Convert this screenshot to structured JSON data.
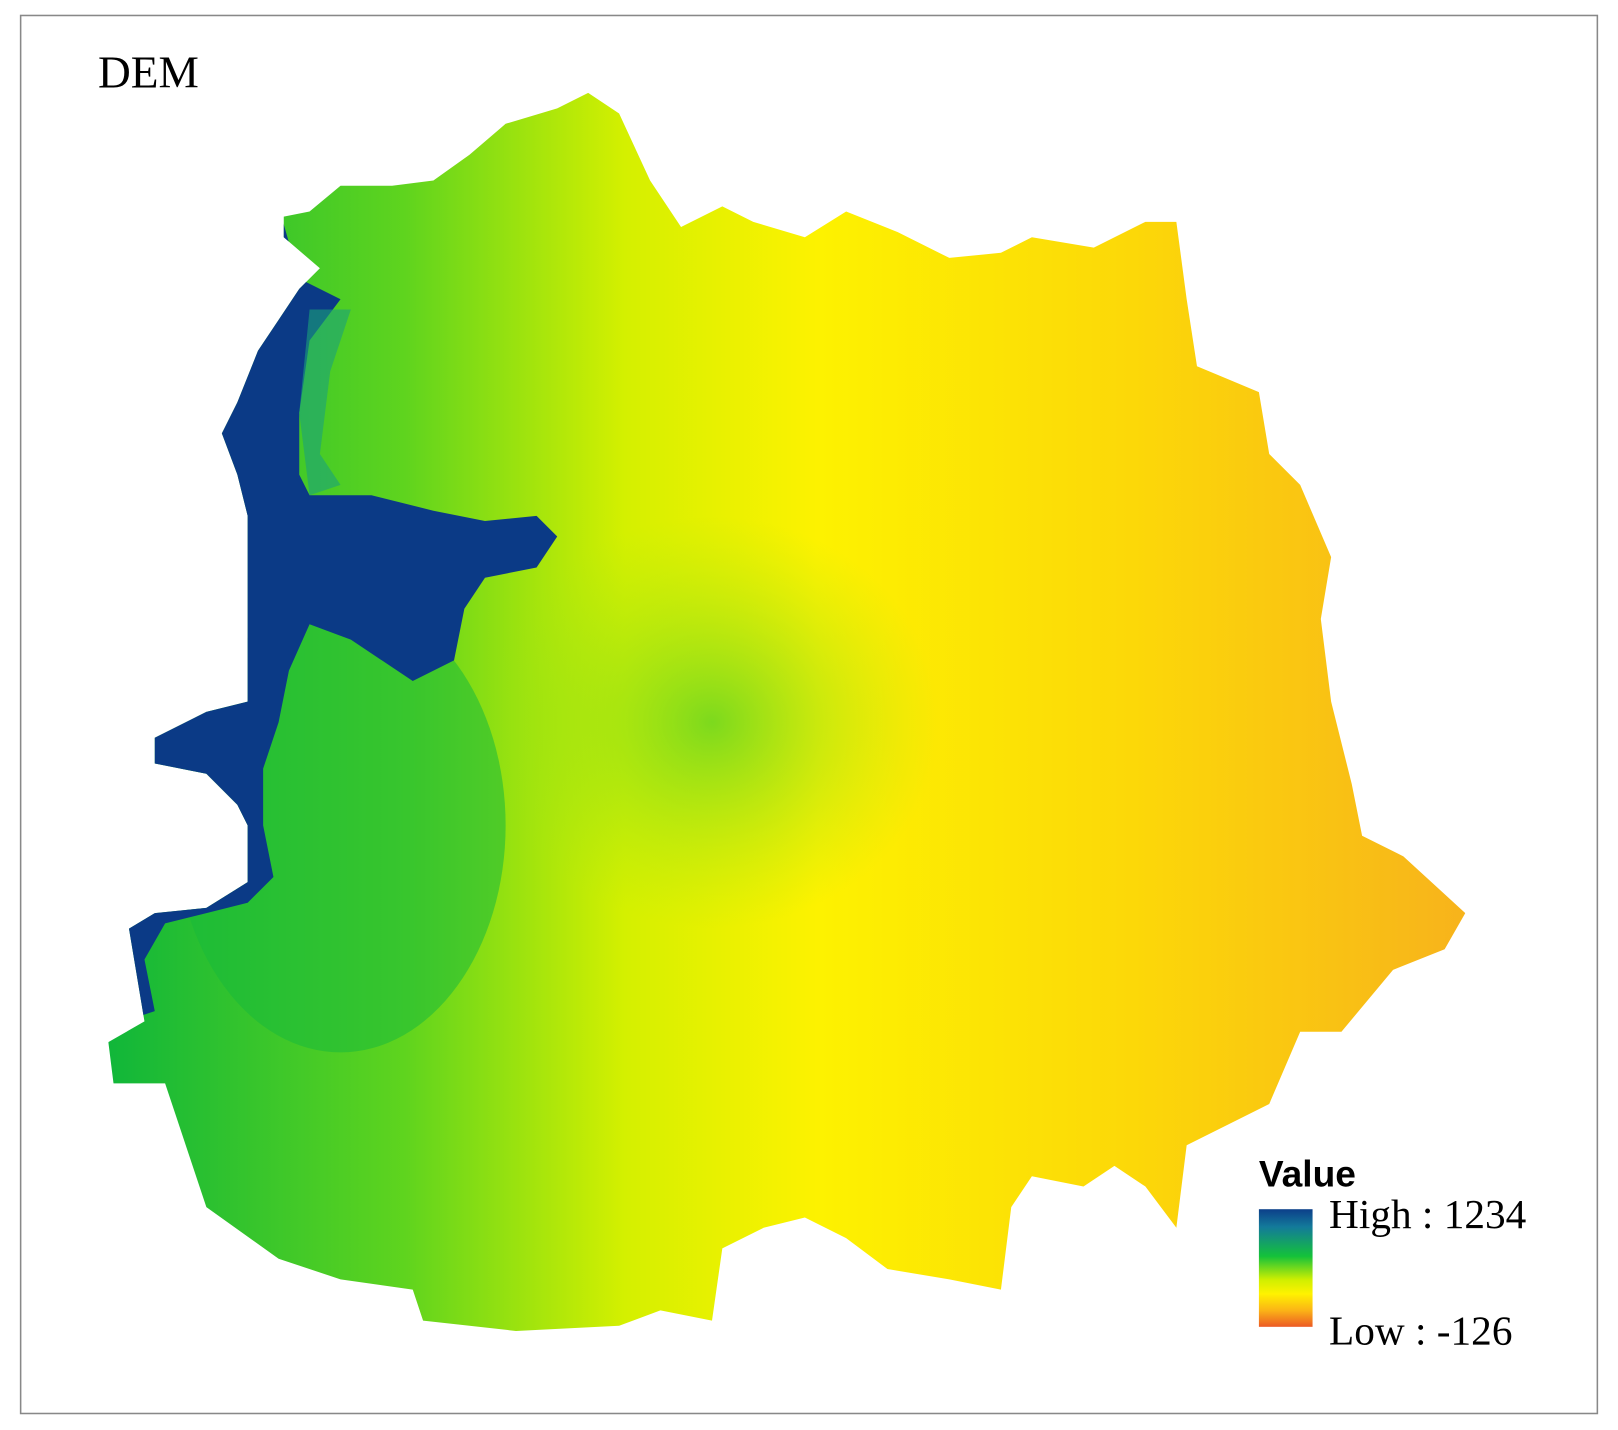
{
  "title": "DEM",
  "legend": {
    "title": "Value",
    "high": "High : 1234",
    "low": "Low : -126"
  }
}
